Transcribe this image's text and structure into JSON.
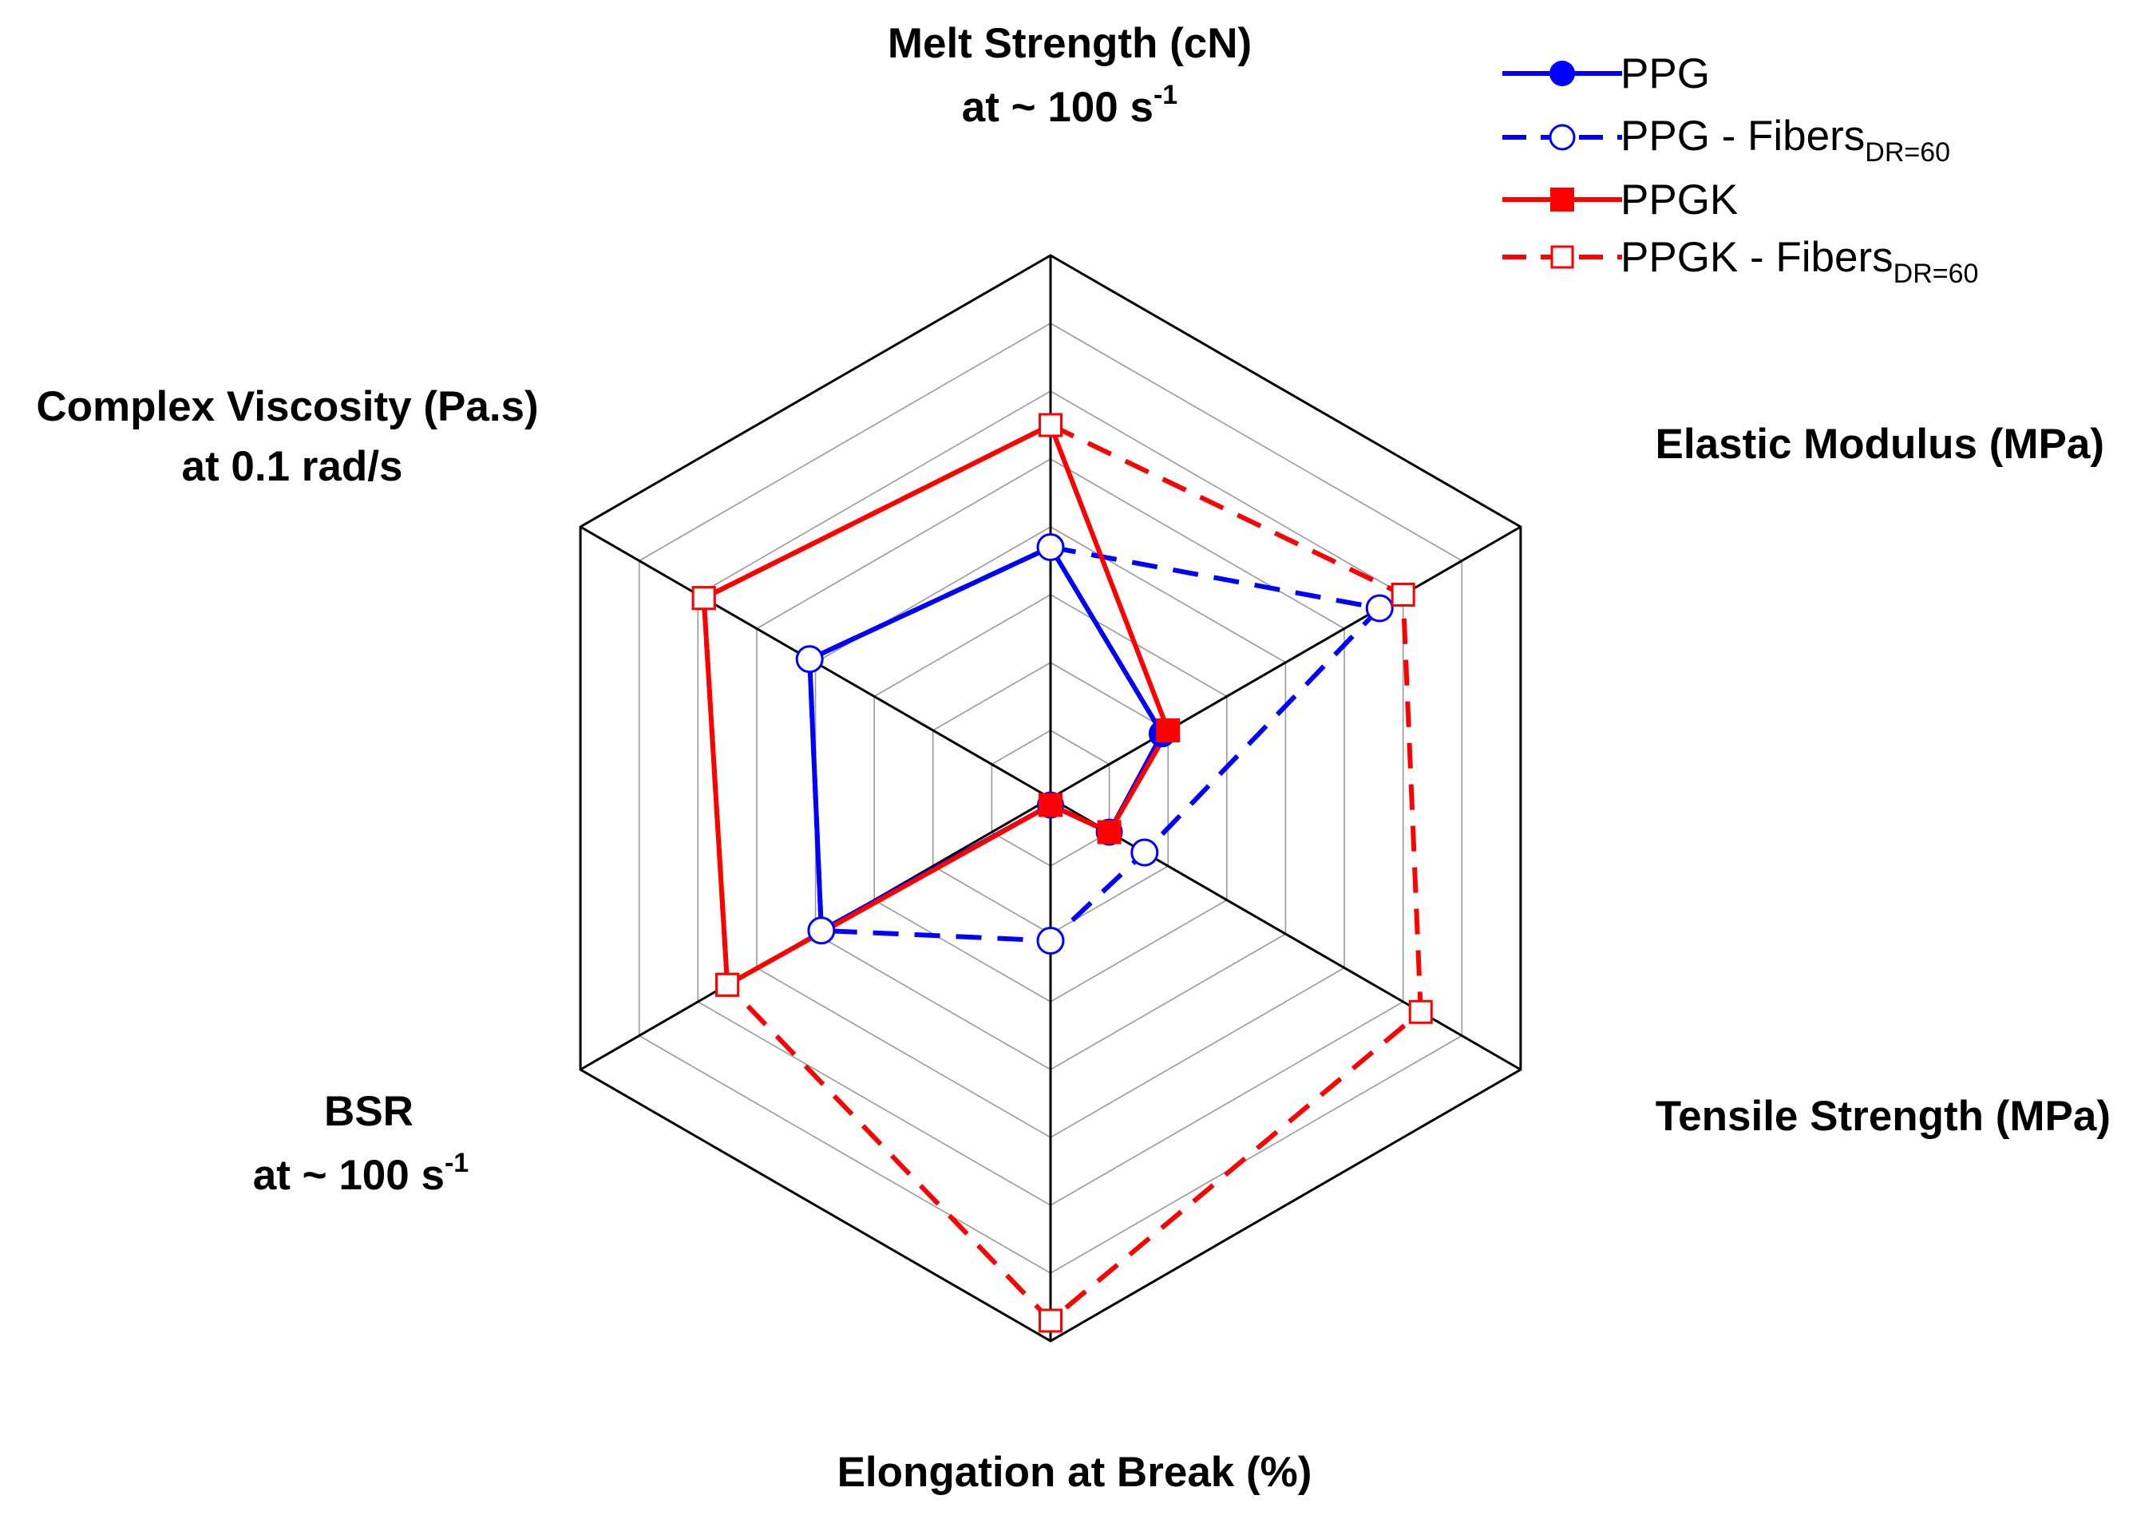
{
  "chart_data": {
    "type": "radar",
    "grid_levels": 8,
    "range": [
      0,
      8
    ],
    "axes": [
      {
        "label": "Melt Strength (cN)",
        "sublabel": {
          "prefix": "at ~ 100 s",
          "sup": "-1"
        }
      },
      {
        "label": "Elastic Modulus (MPa)"
      },
      {
        "label": "Tensile Strength (MPa)"
      },
      {
        "label": "Elongation at Break (%)"
      },
      {
        "label": "BSR",
        "sublabel": {
          "prefix": "at ~ 100 s",
          "sup": "-1"
        }
      },
      {
        "label": "Complex Viscosity (Pa.s)",
        "sublabel": {
          "text": "at 0.1 rad/s"
        }
      }
    ],
    "series": [
      {
        "name": "PPG",
        "name_sub": "",
        "color": "#0000ff",
        "dash": "solid",
        "marker": "circle",
        "filled": true,
        "values": [
          3.7,
          1.9,
          1.0,
          0.1,
          3.9,
          4.1
        ]
      },
      {
        "name": "PPG - Fibers",
        "name_sub": "DR=60",
        "color": "#0000ff",
        "dash": "dashed",
        "marker": "circle",
        "filled": false,
        "values": [
          3.7,
          5.6,
          1.6,
          2.1,
          3.9,
          4.1
        ]
      },
      {
        "name": "PPGK",
        "name_sub": "",
        "color": "#ff0000",
        "dash": "solid",
        "marker": "square",
        "filled": true,
        "values": [
          5.5,
          2.0,
          1.0,
          0.1,
          5.5,
          5.9
        ]
      },
      {
        "name": "PPGK - Fibers",
        "name_sub": "DR=60",
        "color": "#ff0000",
        "dash": "dashed",
        "marker": "square",
        "filled": false,
        "values": [
          5.5,
          6.0,
          6.3,
          7.7,
          5.5,
          5.9
        ]
      }
    ]
  }
}
